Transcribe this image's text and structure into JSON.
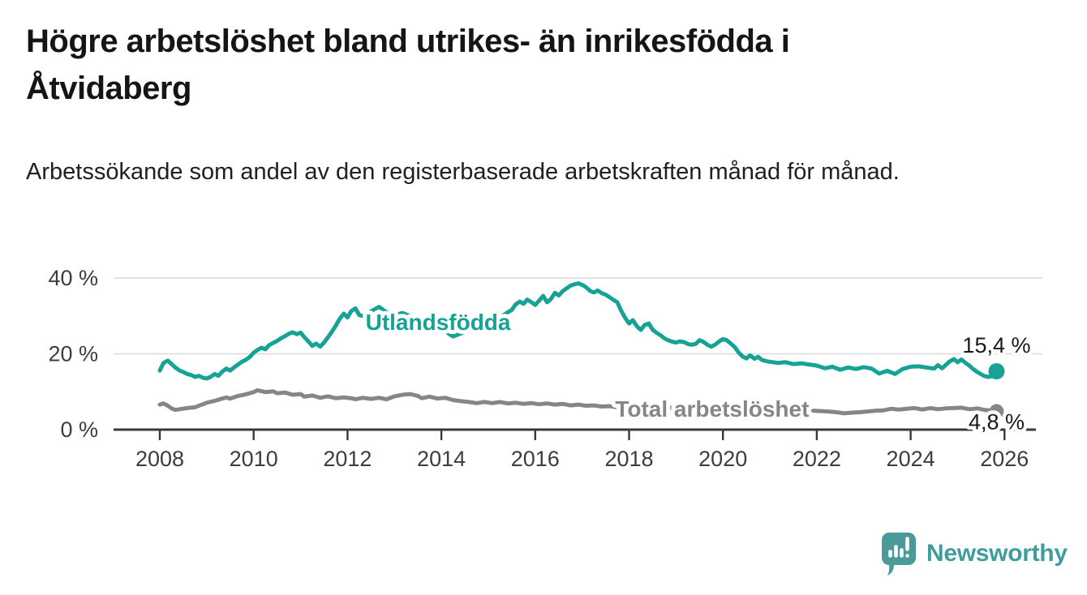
{
  "header": {
    "title": "Högre arbetslöshet bland utrikes- än inrikesfödda i Åtvidaberg",
    "subtitle": "Arbetssökande som andel av den registerbaserade arbetskraften månad för månad."
  },
  "footer": {
    "brand": "Newsworthy",
    "logo_color": "#4A9A99",
    "brand_text_color": "#3F9E9D"
  },
  "chart_data": {
    "type": "line",
    "unit": "%",
    "grid": true,
    "background": "#ffffff",
    "gridline_color": "#DADADA",
    "axis_color": "#3A3A3A",
    "tick_label_color": "#3D3D3D",
    "end_label_color": "#1A1A1A",
    "x_axis": {
      "ticks": [
        2008,
        2010,
        2012,
        2014,
        2016,
        2018,
        2020,
        2022,
        2024,
        2026
      ],
      "range": [
        2007,
        2026.8
      ]
    },
    "y_axis": {
      "tick_labels": [
        "0 %",
        "20 %",
        "40 %"
      ],
      "tick_values": [
        0,
        20,
        40
      ],
      "range": [
        0,
        40
      ]
    },
    "series": [
      {
        "name": "Utlandsfödda",
        "color": "#16A294",
        "end_label": "15,4 %",
        "end_value": 15.4,
        "end_label_position": "above",
        "label_at": {
          "year": 2013.93,
          "value": 28.2
        },
        "points": [
          [
            2008.0,
            15.6
          ],
          [
            2008.08,
            17.6
          ],
          [
            2008.17,
            18.2
          ],
          [
            2008.25,
            17.3
          ],
          [
            2008.33,
            16.4
          ],
          [
            2008.42,
            15.6
          ],
          [
            2008.5,
            15.2
          ],
          [
            2008.58,
            14.7
          ],
          [
            2008.67,
            14.4
          ],
          [
            2008.75,
            13.9
          ],
          [
            2008.83,
            14.2
          ],
          [
            2008.92,
            13.7
          ],
          [
            2009.0,
            13.5
          ],
          [
            2009.08,
            13.9
          ],
          [
            2009.17,
            14.7
          ],
          [
            2009.25,
            14.2
          ],
          [
            2009.33,
            15.3
          ],
          [
            2009.42,
            16.1
          ],
          [
            2009.5,
            15.6
          ],
          [
            2009.58,
            16.4
          ],
          [
            2009.67,
            17.2
          ],
          [
            2009.75,
            17.9
          ],
          [
            2009.83,
            18.4
          ],
          [
            2009.92,
            19.2
          ],
          [
            2010.0,
            20.3
          ],
          [
            2010.08,
            21.0
          ],
          [
            2010.17,
            21.6
          ],
          [
            2010.25,
            21.2
          ],
          [
            2010.33,
            22.3
          ],
          [
            2010.42,
            22.9
          ],
          [
            2010.5,
            23.4
          ],
          [
            2010.58,
            24.1
          ],
          [
            2010.67,
            24.7
          ],
          [
            2010.75,
            25.3
          ],
          [
            2010.83,
            25.7
          ],
          [
            2010.92,
            25.2
          ],
          [
            2011.0,
            25.6
          ],
          [
            2011.08,
            24.4
          ],
          [
            2011.17,
            23.2
          ],
          [
            2011.25,
            22.1
          ],
          [
            2011.33,
            22.7
          ],
          [
            2011.42,
            21.9
          ],
          [
            2011.5,
            23.0
          ],
          [
            2011.58,
            24.3
          ],
          [
            2011.67,
            25.9
          ],
          [
            2011.75,
            27.4
          ],
          [
            2011.83,
            29.2
          ],
          [
            2011.92,
            30.6
          ],
          [
            2012.0,
            29.6
          ],
          [
            2012.08,
            31.3
          ],
          [
            2012.17,
            32.0
          ],
          [
            2012.25,
            30.2
          ],
          [
            2012.33,
            30.0
          ],
          [
            2012.5,
            31.2
          ],
          [
            2012.67,
            32.4
          ],
          [
            2012.83,
            31.0
          ],
          [
            2013.0,
            30.2
          ],
          [
            2013.17,
            30.8
          ],
          [
            2013.33,
            30.0
          ],
          [
            2013.5,
            29.2
          ],
          [
            2013.67,
            28.4
          ],
          [
            2013.83,
            27.6
          ],
          [
            2014.0,
            26.8
          ],
          [
            2014.17,
            25.2
          ],
          [
            2014.25,
            24.6
          ],
          [
            2014.42,
            25.4
          ],
          [
            2014.58,
            26.2
          ],
          [
            2014.75,
            27.0
          ],
          [
            2014.92,
            27.8
          ],
          [
            2015.08,
            28.6
          ],
          [
            2015.25,
            29.6
          ],
          [
            2015.42,
            31.0
          ],
          [
            2015.5,
            31.6
          ],
          [
            2015.58,
            33.0
          ],
          [
            2015.67,
            33.8
          ],
          [
            2015.75,
            33.2
          ],
          [
            2015.83,
            34.3
          ],
          [
            2015.92,
            33.6
          ],
          [
            2016.0,
            32.9
          ],
          [
            2016.08,
            34.0
          ],
          [
            2016.17,
            35.3
          ],
          [
            2016.25,
            33.6
          ],
          [
            2016.33,
            34.4
          ],
          [
            2016.42,
            36.1
          ],
          [
            2016.5,
            35.4
          ],
          [
            2016.58,
            36.5
          ],
          [
            2016.67,
            37.3
          ],
          [
            2016.75,
            38.0
          ],
          [
            2016.83,
            38.3
          ],
          [
            2016.92,
            38.6
          ],
          [
            2017.0,
            38.2
          ],
          [
            2017.08,
            37.6
          ],
          [
            2017.17,
            36.6
          ],
          [
            2017.25,
            36.2
          ],
          [
            2017.33,
            36.7
          ],
          [
            2017.42,
            36.0
          ],
          [
            2017.5,
            35.6
          ],
          [
            2017.58,
            35.0
          ],
          [
            2017.67,
            34.2
          ],
          [
            2017.75,
            33.6
          ],
          [
            2017.83,
            31.4
          ],
          [
            2017.92,
            29.4
          ],
          [
            2018.0,
            28.0
          ],
          [
            2018.08,
            28.9
          ],
          [
            2018.17,
            27.2
          ],
          [
            2018.25,
            26.3
          ],
          [
            2018.33,
            27.6
          ],
          [
            2018.42,
            28.0
          ],
          [
            2018.5,
            26.4
          ],
          [
            2018.58,
            25.6
          ],
          [
            2018.67,
            24.9
          ],
          [
            2018.75,
            24.1
          ],
          [
            2018.83,
            23.6
          ],
          [
            2018.92,
            23.2
          ],
          [
            2019.0,
            23.0
          ],
          [
            2019.08,
            23.3
          ],
          [
            2019.17,
            23.1
          ],
          [
            2019.25,
            22.6
          ],
          [
            2019.33,
            22.4
          ],
          [
            2019.42,
            22.6
          ],
          [
            2019.5,
            23.6
          ],
          [
            2019.58,
            23.2
          ],
          [
            2019.67,
            22.4
          ],
          [
            2019.75,
            21.9
          ],
          [
            2019.83,
            22.4
          ],
          [
            2019.92,
            23.3
          ],
          [
            2020.0,
            23.9
          ],
          [
            2020.08,
            23.6
          ],
          [
            2020.17,
            22.7
          ],
          [
            2020.25,
            21.8
          ],
          [
            2020.33,
            20.4
          ],
          [
            2020.42,
            19.3
          ],
          [
            2020.5,
            18.8
          ],
          [
            2020.58,
            19.6
          ],
          [
            2020.67,
            18.7
          ],
          [
            2020.75,
            19.2
          ],
          [
            2020.83,
            18.4
          ],
          [
            2020.92,
            18.1
          ],
          [
            2021.0,
            17.9
          ],
          [
            2021.17,
            17.6
          ],
          [
            2021.33,
            17.8
          ],
          [
            2021.5,
            17.3
          ],
          [
            2021.67,
            17.5
          ],
          [
            2021.83,
            17.2
          ],
          [
            2022.0,
            16.9
          ],
          [
            2022.17,
            16.2
          ],
          [
            2022.33,
            16.6
          ],
          [
            2022.5,
            15.8
          ],
          [
            2022.67,
            16.4
          ],
          [
            2022.83,
            16.0
          ],
          [
            2023.0,
            16.5
          ],
          [
            2023.17,
            16.1
          ],
          [
            2023.33,
            14.8
          ],
          [
            2023.5,
            15.5
          ],
          [
            2023.67,
            14.7
          ],
          [
            2023.83,
            16.0
          ],
          [
            2024.0,
            16.6
          ],
          [
            2024.17,
            16.7
          ],
          [
            2024.33,
            16.4
          ],
          [
            2024.5,
            16.1
          ],
          [
            2024.58,
            17.0
          ],
          [
            2024.67,
            16.2
          ],
          [
            2024.83,
            18.0
          ],
          [
            2024.92,
            18.6
          ],
          [
            2025.0,
            17.8
          ],
          [
            2025.08,
            18.5
          ],
          [
            2025.17,
            17.6
          ],
          [
            2025.25,
            16.9
          ],
          [
            2025.33,
            16.0
          ],
          [
            2025.42,
            15.2
          ],
          [
            2025.5,
            14.6
          ],
          [
            2025.58,
            14.1
          ],
          [
            2025.67,
            13.9
          ],
          [
            2025.75,
            14.2
          ],
          [
            2025.83,
            15.4
          ]
        ]
      },
      {
        "name": "Total arbetslöshet",
        "color": "#85858A",
        "end_label": "4,8 %",
        "end_value": 4.8,
        "end_label_position": "below",
        "label_at": {
          "year": 2019.77,
          "value": 5.35
        },
        "points": [
          [
            2008.0,
            6.6
          ],
          [
            2008.08,
            6.9
          ],
          [
            2008.17,
            6.3
          ],
          [
            2008.25,
            5.6
          ],
          [
            2008.33,
            5.2
          ],
          [
            2008.42,
            5.4
          ],
          [
            2008.58,
            5.7
          ],
          [
            2008.75,
            5.9
          ],
          [
            2008.83,
            6.3
          ],
          [
            2008.92,
            6.7
          ],
          [
            2009.0,
            7.1
          ],
          [
            2009.17,
            7.6
          ],
          [
            2009.33,
            8.2
          ],
          [
            2009.42,
            8.5
          ],
          [
            2009.5,
            8.2
          ],
          [
            2009.67,
            8.9
          ],
          [
            2009.83,
            9.3
          ],
          [
            2010.0,
            9.9
          ],
          [
            2010.08,
            10.4
          ],
          [
            2010.25,
            9.9
          ],
          [
            2010.42,
            10.1
          ],
          [
            2010.5,
            9.6
          ],
          [
            2010.67,
            9.8
          ],
          [
            2010.83,
            9.2
          ],
          [
            2011.0,
            9.4
          ],
          [
            2011.08,
            8.7
          ],
          [
            2011.25,
            9.0
          ],
          [
            2011.42,
            8.4
          ],
          [
            2011.58,
            8.8
          ],
          [
            2011.75,
            8.3
          ],
          [
            2011.92,
            8.5
          ],
          [
            2012.08,
            8.3
          ],
          [
            2012.17,
            8.0
          ],
          [
            2012.33,
            8.4
          ],
          [
            2012.5,
            8.1
          ],
          [
            2012.67,
            8.4
          ],
          [
            2012.83,
            8.0
          ],
          [
            2013.0,
            8.8
          ],
          [
            2013.17,
            9.2
          ],
          [
            2013.33,
            9.4
          ],
          [
            2013.5,
            8.9
          ],
          [
            2013.58,
            8.3
          ],
          [
            2013.75,
            8.7
          ],
          [
            2013.92,
            8.2
          ],
          [
            2014.08,
            8.4
          ],
          [
            2014.25,
            7.8
          ],
          [
            2014.42,
            7.5
          ],
          [
            2014.58,
            7.3
          ],
          [
            2014.75,
            7.0
          ],
          [
            2014.92,
            7.3
          ],
          [
            2015.08,
            7.0
          ],
          [
            2015.25,
            7.3
          ],
          [
            2015.42,
            6.9
          ],
          [
            2015.58,
            7.1
          ],
          [
            2015.75,
            6.8
          ],
          [
            2015.92,
            7.0
          ],
          [
            2016.08,
            6.7
          ],
          [
            2016.25,
            6.9
          ],
          [
            2016.42,
            6.6
          ],
          [
            2016.58,
            6.8
          ],
          [
            2016.75,
            6.4
          ],
          [
            2016.92,
            6.6
          ],
          [
            2017.08,
            6.3
          ],
          [
            2017.25,
            6.4
          ],
          [
            2017.42,
            6.1
          ],
          [
            2017.58,
            6.2
          ],
          [
            2017.75,
            5.9
          ],
          [
            2017.92,
            6.1
          ],
          [
            2018.08,
            5.8
          ],
          [
            2018.25,
            6.0
          ],
          [
            2018.42,
            5.7
          ],
          [
            2018.58,
            5.9
          ],
          [
            2018.75,
            5.6
          ],
          [
            2018.92,
            5.8
          ],
          [
            2019.08,
            5.6
          ],
          [
            2019.25,
            5.4
          ],
          [
            2019.42,
            5.6
          ],
          [
            2019.58,
            5.3
          ],
          [
            2019.75,
            5.2
          ],
          [
            2019.92,
            5.4
          ],
          [
            2020.08,
            5.6
          ],
          [
            2020.25,
            6.0
          ],
          [
            2020.42,
            6.3
          ],
          [
            2020.58,
            6.1
          ],
          [
            2020.75,
            5.9
          ],
          [
            2020.92,
            6.0
          ],
          [
            2021.08,
            5.8
          ],
          [
            2021.25,
            5.6
          ],
          [
            2021.42,
            5.4
          ],
          [
            2021.58,
            5.2
          ],
          [
            2021.75,
            5.1
          ],
          [
            2021.92,
            5.0
          ],
          [
            2022.08,
            4.9
          ],
          [
            2022.25,
            4.8
          ],
          [
            2022.42,
            4.6
          ],
          [
            2022.58,
            4.3
          ],
          [
            2022.75,
            4.5
          ],
          [
            2022.92,
            4.6
          ],
          [
            2023.08,
            4.8
          ],
          [
            2023.25,
            5.0
          ],
          [
            2023.42,
            5.1
          ],
          [
            2023.58,
            5.5
          ],
          [
            2023.75,
            5.3
          ],
          [
            2023.92,
            5.5
          ],
          [
            2024.08,
            5.7
          ],
          [
            2024.25,
            5.3
          ],
          [
            2024.42,
            5.7
          ],
          [
            2024.58,
            5.4
          ],
          [
            2024.75,
            5.6
          ],
          [
            2024.92,
            5.7
          ],
          [
            2025.08,
            5.8
          ],
          [
            2025.25,
            5.4
          ],
          [
            2025.42,
            5.6
          ],
          [
            2025.58,
            5.2
          ],
          [
            2025.75,
            5.0
          ],
          [
            2025.83,
            4.8
          ]
        ]
      }
    ]
  }
}
